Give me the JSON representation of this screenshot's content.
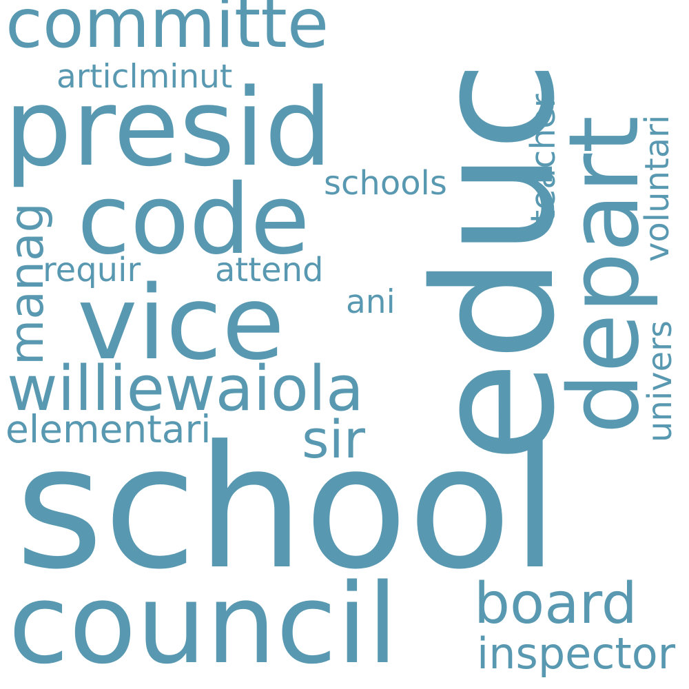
{
  "word_color": "#5898b0",
  "background_color": "#ffffff",
  "words": {
    "committe": "committe",
    "presid": "presid",
    "educ": "educ",
    "depart": "depart",
    "articlminut": "articlminut",
    "code": "code",
    "schools": "schools",
    "teacher": "teacher",
    "voluntari": "voluntari",
    "manag": "manag",
    "requir": "requir",
    "attend": "attend",
    "vice": "vice",
    "ani": "ani",
    "univers": "univers",
    "williewaiola": "williewaiola",
    "elementari": "elementari",
    "sir": "sir",
    "school": "school",
    "council": "council",
    "board": "board",
    "inspector": "inspector"
  }
}
